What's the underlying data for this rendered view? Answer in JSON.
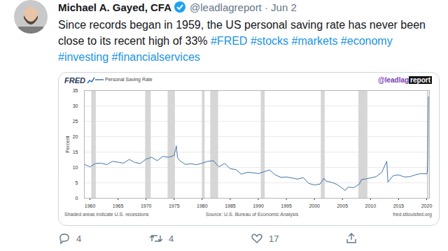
{
  "tweet": {
    "name": "Michael A. Gayed, CFA",
    "handle_date": "@leadlagreport · Jun 2",
    "text_lines": [
      "Since records began in 1959, the US personal saving rate has never been",
      "close to its recent high of 33% #FRED #stocks #markets #economy",
      "#investing #financialservices"
    ],
    "replies": 4,
    "retweets": 4,
    "likes": 17
  },
  "chart_data": {
    "type": "line",
    "logo": "FRED",
    "watermark": {
      "lead": "@leadlag",
      "tail": "report"
    },
    "y_label": "Percent",
    "legend": "top-left",
    "grid": true,
    "x": [
      1959,
      1960,
      1961,
      1962,
      1963,
      1964,
      1965,
      1966,
      1967,
      1968,
      1969,
      1970,
      1971,
      1972,
      1973,
      1974,
      1975,
      1975.4,
      1975.6,
      1976,
      1977,
      1978,
      1979,
      1980,
      1981,
      1982,
      1983,
      1984,
      1985,
      1986,
      1987,
      1988,
      1989,
      1990,
      1991,
      1992,
      1993,
      1994,
      1995,
      1996,
      1997,
      1998,
      1999,
      2000,
      2001,
      2001.7,
      2002,
      2003,
      2004,
      2005,
      2005.5,
      2006,
      2007,
      2008,
      2008.4,
      2009,
      2010,
      2011,
      2012,
      2012.9,
      2013.1,
      2014,
      2015,
      2016,
      2017,
      2018,
      2019,
      2020,
      2020.1,
      2020.2,
      2020.3
    ],
    "series": [
      {
        "name": "Personal Saving Rate",
        "color": "#4572a7",
        "values": [
          11.0,
          10.2,
          11.3,
          11.4,
          10.9,
          12.0,
          11.7,
          11.4,
          12.6,
          11.6,
          11.3,
          12.7,
          13.3,
          12.2,
          13.6,
          13.3,
          13.9,
          17.0,
          13.2,
          12.2,
          11.0,
          11.2,
          10.9,
          11.4,
          12.0,
          12.2,
          10.2,
          11.3,
          9.6,
          9.3,
          7.8,
          8.4,
          8.3,
          8.0,
          8.6,
          9.2,
          7.6,
          6.8,
          6.9,
          6.6,
          6.2,
          6.7,
          4.8,
          4.3,
          4.6,
          6.5,
          5.6,
          5.2,
          4.5,
          3.2,
          2.5,
          3.6,
          3.4,
          4.6,
          6.1,
          6.2,
          6.6,
          7.0,
          8.4,
          12.0,
          5.2,
          7.3,
          7.6,
          6.9,
          7.0,
          7.6,
          8.0,
          7.9,
          8.3,
          12.7,
          33.0
        ]
      }
    ],
    "xlim": [
      1959,
      2020.5
    ],
    "xticks": [
      1960,
      1965,
      1970,
      1975,
      1980,
      1985,
      1990,
      1995,
      2000,
      2005,
      2010,
      2015,
      2020
    ],
    "ylim": [
      0,
      35
    ],
    "yticks": [
      0,
      5,
      10,
      15,
      20,
      25,
      30,
      35
    ],
    "recessions": [
      [
        1960.3,
        1961.1
      ],
      [
        1969.9,
        1970.9
      ],
      [
        1973.9,
        1975.2
      ],
      [
        1980.0,
        1980.5
      ],
      [
        1981.5,
        1982.9
      ],
      [
        1990.5,
        1991.2
      ],
      [
        2001.2,
        2001.9
      ],
      [
        2007.9,
        2009.5
      ],
      [
        2020.1,
        2020.4
      ]
    ],
    "notes": [
      "Shaded areas indicate U.S. recessions",
      "Source: U.S. Bureau of Economic Analysis",
      "fred.stlouisfed.org"
    ]
  }
}
